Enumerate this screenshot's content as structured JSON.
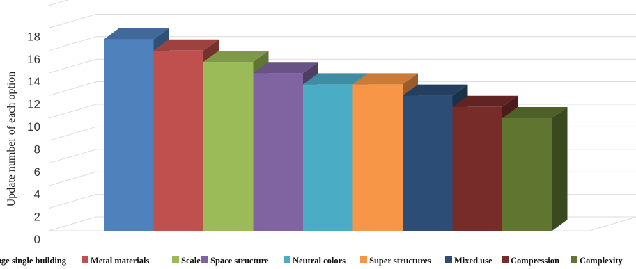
{
  "chart_data": {
    "type": "bar",
    "categories": [
      "huge single building",
      "Metal materials",
      "Scale",
      "Space structure",
      "Neutral colors",
      "Super structures",
      "Mixed use",
      "Compression",
      "Complexity"
    ],
    "values": [
      17,
      16,
      15,
      14,
      13,
      13,
      12,
      11,
      10
    ],
    "colors": [
      "#4f81bd",
      "#c0504d",
      "#9bbb59",
      "#8064a2",
      "#4bacc6",
      "#f79646",
      "#2c4d75",
      "#772c2a",
      "#5f7530"
    ],
    "ylabel": "Update number of each option",
    "ylim": [
      0,
      18
    ],
    "yticks": [
      "0",
      "2",
      "4",
      "6",
      "8",
      "10",
      "12",
      "14",
      "16",
      "18"
    ],
    "grid": true,
    "legend_position": "bottom",
    "style": "3d"
  }
}
